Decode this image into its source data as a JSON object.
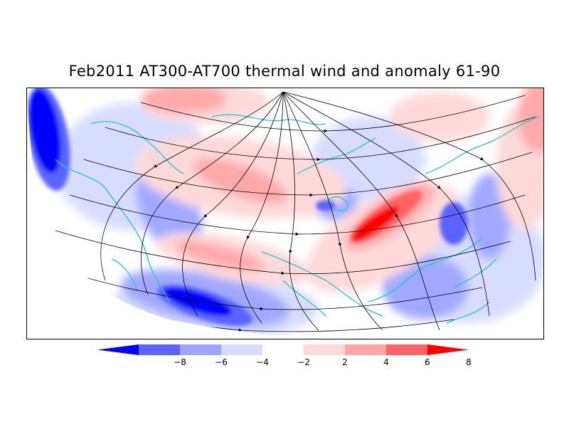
{
  "title": "Feb2011 AT300-AT700 thermal wind and anomaly 61-90",
  "legend": {
    "ticks": [
      "-8",
      "-6",
      "-4",
      "-2",
      "2",
      "4",
      "6",
      "8"
    ],
    "colors": [
      "#0000ff",
      "#5a64ff",
      "#9ba5ff",
      "#d6dcff",
      "#ffffff",
      "#ffd8d8",
      "#ffa5a5",
      "#ff6464",
      "#ff0000"
    ]
  },
  "map": {
    "projection": "north-polar-stereographic-half",
    "streamline_color": "#000000",
    "coastline_color": "#1ec8c8"
  }
}
